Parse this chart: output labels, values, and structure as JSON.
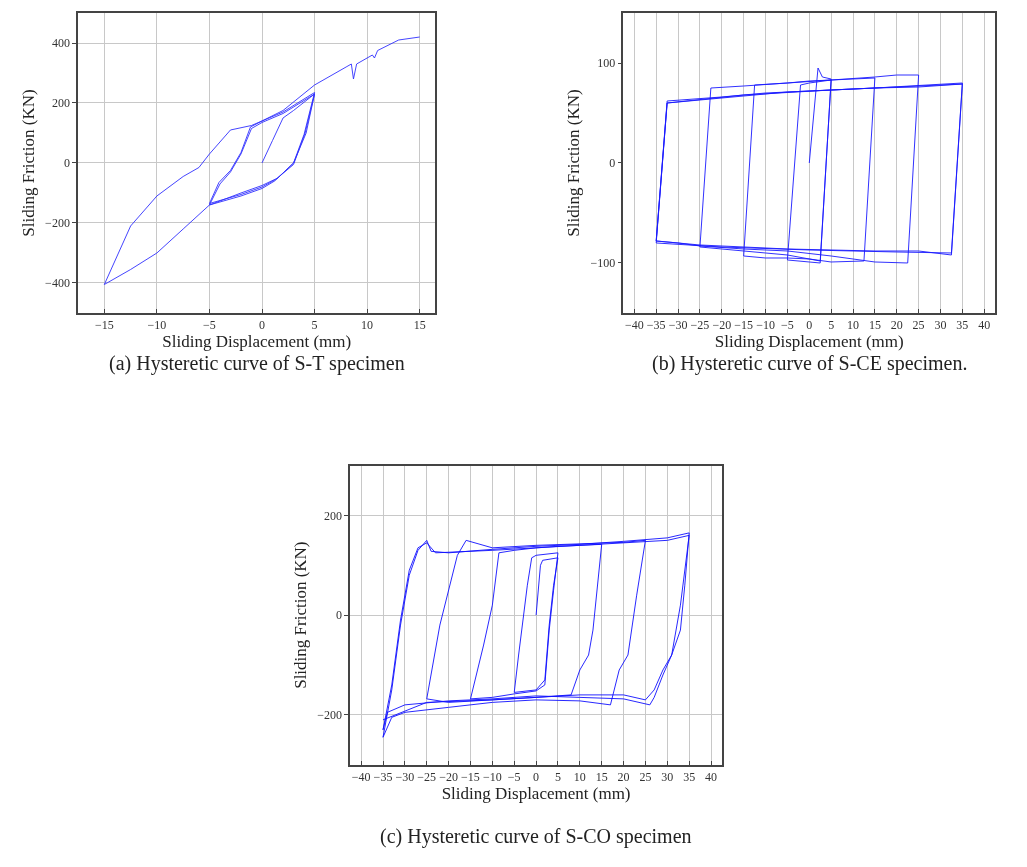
{
  "chart_data": [
    {
      "type": "line",
      "title": "(a) Hysteretic curve of S-T specimen",
      "xlabel": "Sliding Displacement (mm)",
      "ylabel": "Sliding Friction (KN)",
      "xlim": [
        -17.5,
        16.5
      ],
      "ylim": [
        -500,
        500
      ],
      "xticks": [
        -15,
        -10,
        -5,
        0,
        5,
        10,
        15
      ],
      "yticks": [
        -400,
        -200,
        0,
        200,
        400
      ],
      "grid": true,
      "marker": "none",
      "line_style": "solid",
      "series": [
        {
          "color": "#3030ff",
          "x": [
            0,
            1,
            2,
            3,
            5,
            4.2,
            3,
            1.5,
            0,
            -2,
            -5,
            -4,
            -3,
            -2,
            -1,
            0,
            2,
            5,
            4.1,
            3,
            1.3,
            0,
            -2,
            -5,
            -4.1,
            -3,
            -2,
            -1.1,
            0,
            2,
            5,
            4,
            3,
            1.2,
            0,
            -2,
            -5,
            -7.5,
            -10,
            -12.5,
            -15,
            -12.5,
            -10,
            -7.5,
            -6,
            -5,
            -3,
            -1,
            0,
            2,
            5,
            8,
            8.5,
            8.7,
            9,
            10.5,
            10.7,
            11,
            13,
            15
          ],
          "values": [
            0,
            75,
            150,
            175,
            230,
            100,
            0,
            -50,
            -75,
            -100,
            -140,
            -70,
            -30,
            30,
            115,
            135,
            165,
            230,
            100,
            -5,
            -55,
            -80,
            -105,
            -135,
            -65,
            -25,
            35,
            120,
            140,
            170,
            235,
            95,
            0,
            -60,
            -85,
            -110,
            -140,
            -220,
            -300,
            -355,
            -405,
            -210,
            -110,
            -45,
            -15,
            30,
            110,
            125,
            140,
            175,
            260,
            320,
            330,
            280,
            330,
            360,
            350,
            375,
            410,
            420
          ]
        }
      ]
    },
    {
      "type": "line",
      "title": "(b) Hysteretic curve of S-CE specimen.",
      "xlabel": "Sliding Displacement (mm)",
      "ylabel": "Sliding Friction (KN)",
      "xlim": [
        -42.5,
        42.5
      ],
      "ylim": [
        -150,
        150
      ],
      "xticks": [
        -40,
        -35,
        -30,
        -25,
        -20,
        -15,
        -10,
        -5,
        0,
        5,
        10,
        15,
        20,
        25,
        30,
        35,
        40
      ],
      "yticks": [
        -100,
        0,
        100
      ],
      "grid": "x",
      "marker": "none",
      "line_style": "solid",
      "series": [
        {
          "color": "#1a1aff",
          "x": [
            0,
            2,
            3,
            5,
            2.5,
            0,
            -5,
            -2,
            0,
            5,
            2.5,
            0,
            -5,
            -10,
            -15,
            -12.5,
            -5,
            0,
            5,
            10,
            15,
            12.5,
            5,
            0,
            -5,
            -10,
            -15,
            -20,
            -25,
            -22.5,
            -15,
            -5,
            5,
            15,
            20,
            25,
            22.5,
            15,
            5,
            -5,
            -15,
            -25,
            -30,
            -35,
            -32.5,
            -25,
            -15,
            -5,
            5,
            15,
            25,
            35,
            32.5,
            25,
            15,
            5,
            -5,
            -15,
            -25,
            -35,
            -32.5,
            -20,
            -10,
            0,
            15,
            35,
            32.5,
            20,
            0,
            -20,
            -35,
            -32.5,
            -15,
            5,
            25,
            35
          ],
          "values": [
            0,
            95,
            86,
            84,
            -100,
            -99,
            -97,
            78,
            80,
            83,
            -98,
            -96,
            -95,
            -95,
            -93,
            78,
            80,
            82,
            83,
            84,
            85,
            -98,
            -99,
            -96,
            -92,
            -90,
            -88,
            -86,
            -84,
            75,
            77,
            80,
            83,
            86,
            88,
            88,
            -100,
            -99,
            -93,
            -88,
            -86,
            -83,
            -80,
            -78,
            60,
            63,
            67,
            71,
            73,
            75,
            76,
            79,
            -92,
            -88,
            -88,
            -87,
            -86,
            -84,
            -82,
            -78,
            62,
            66,
            70,
            72,
            75,
            80,
            -90,
            -89,
            -87,
            -84,
            -80,
            60,
            68,
            73,
            77,
            79
          ]
        }
      ]
    },
    {
      "type": "line",
      "title": "(c) Hysteretic curve of S-CO specimen",
      "xlabel": "Sliding Displacement (mm)",
      "ylabel": "Sliding Friction (KN)",
      "xlim": [
        -42.5,
        42.5
      ],
      "ylim": [
        -300,
        300
      ],
      "xticks": [
        -40,
        -35,
        -30,
        -25,
        -20,
        -15,
        -10,
        -5,
        0,
        5,
        10,
        15,
        20,
        25,
        30,
        35,
        40
      ],
      "yticks": [
        -200,
        0,
        200
      ],
      "grid": true,
      "marker": "none",
      "line_style": "solid",
      "series": [
        {
          "color": "#1010ff",
          "x": [
            0,
            1,
            1.5,
            5,
            4,
            3,
            2,
            0,
            -5,
            -4,
            -2,
            -1,
            0,
            5,
            4,
            3,
            2,
            0,
            -5,
            -10,
            -15,
            -12,
            -10,
            -8.5,
            -5,
            0,
            5,
            10,
            15,
            13,
            12,
            10,
            8,
            0,
            -10,
            -20,
            -25,
            -22,
            -18,
            -16,
            -10,
            0,
            10,
            20,
            25,
            23,
            21,
            19,
            17,
            10,
            0,
            -10,
            -20,
            -30,
            -33,
            -35,
            -33,
            -31,
            -29,
            -27,
            -25,
            -24,
            -20,
            -10,
            0,
            10,
            20,
            30,
            35,
            34,
            33,
            31,
            29,
            27,
            26,
            20,
            10,
            0,
            -10,
            -20,
            -30,
            -34,
            -35,
            -33,
            -31,
            -29,
            -27,
            -25,
            -23,
            -10,
            0,
            10,
            20,
            30,
            35,
            33,
            31,
            29,
            27,
            25,
            20,
            10,
            0,
            -10,
            -25,
            -35
          ],
          "values": [
            0,
            100,
            110,
            115,
            60,
            -20,
            -130,
            -150,
            -155,
            -80,
            60,
            115,
            120,
            125,
            50,
            -30,
            -140,
            -152,
            -158,
            -165,
            -168,
            -60,
            20,
            125,
            130,
            135,
            138,
            140,
            142,
            -30,
            -80,
            -110,
            -160,
            -165,
            -170,
            -175,
            -168,
            -20,
            120,
            150,
            135,
            140,
            143,
            146,
            150,
            40,
            -80,
            -110,
            -180,
            -172,
            -170,
            -175,
            -185,
            -195,
            -205,
            -245,
            -150,
            -20,
            80,
            130,
            150,
            128,
            125,
            132,
            138,
            142,
            148,
            155,
            165,
            60,
            -30,
            -80,
            -120,
            -165,
            -180,
            -168,
            -165,
            -162,
            -168,
            -172,
            -180,
            -195,
            -230,
            -140,
            -10,
            90,
            135,
            145,
            125,
            130,
            135,
            140,
            145,
            150,
            160,
            20,
            -80,
            -110,
            -150,
            -170,
            -160,
            -160,
            -165,
            -170,
            -175,
            -210
          ]
        }
      ]
    }
  ]
}
